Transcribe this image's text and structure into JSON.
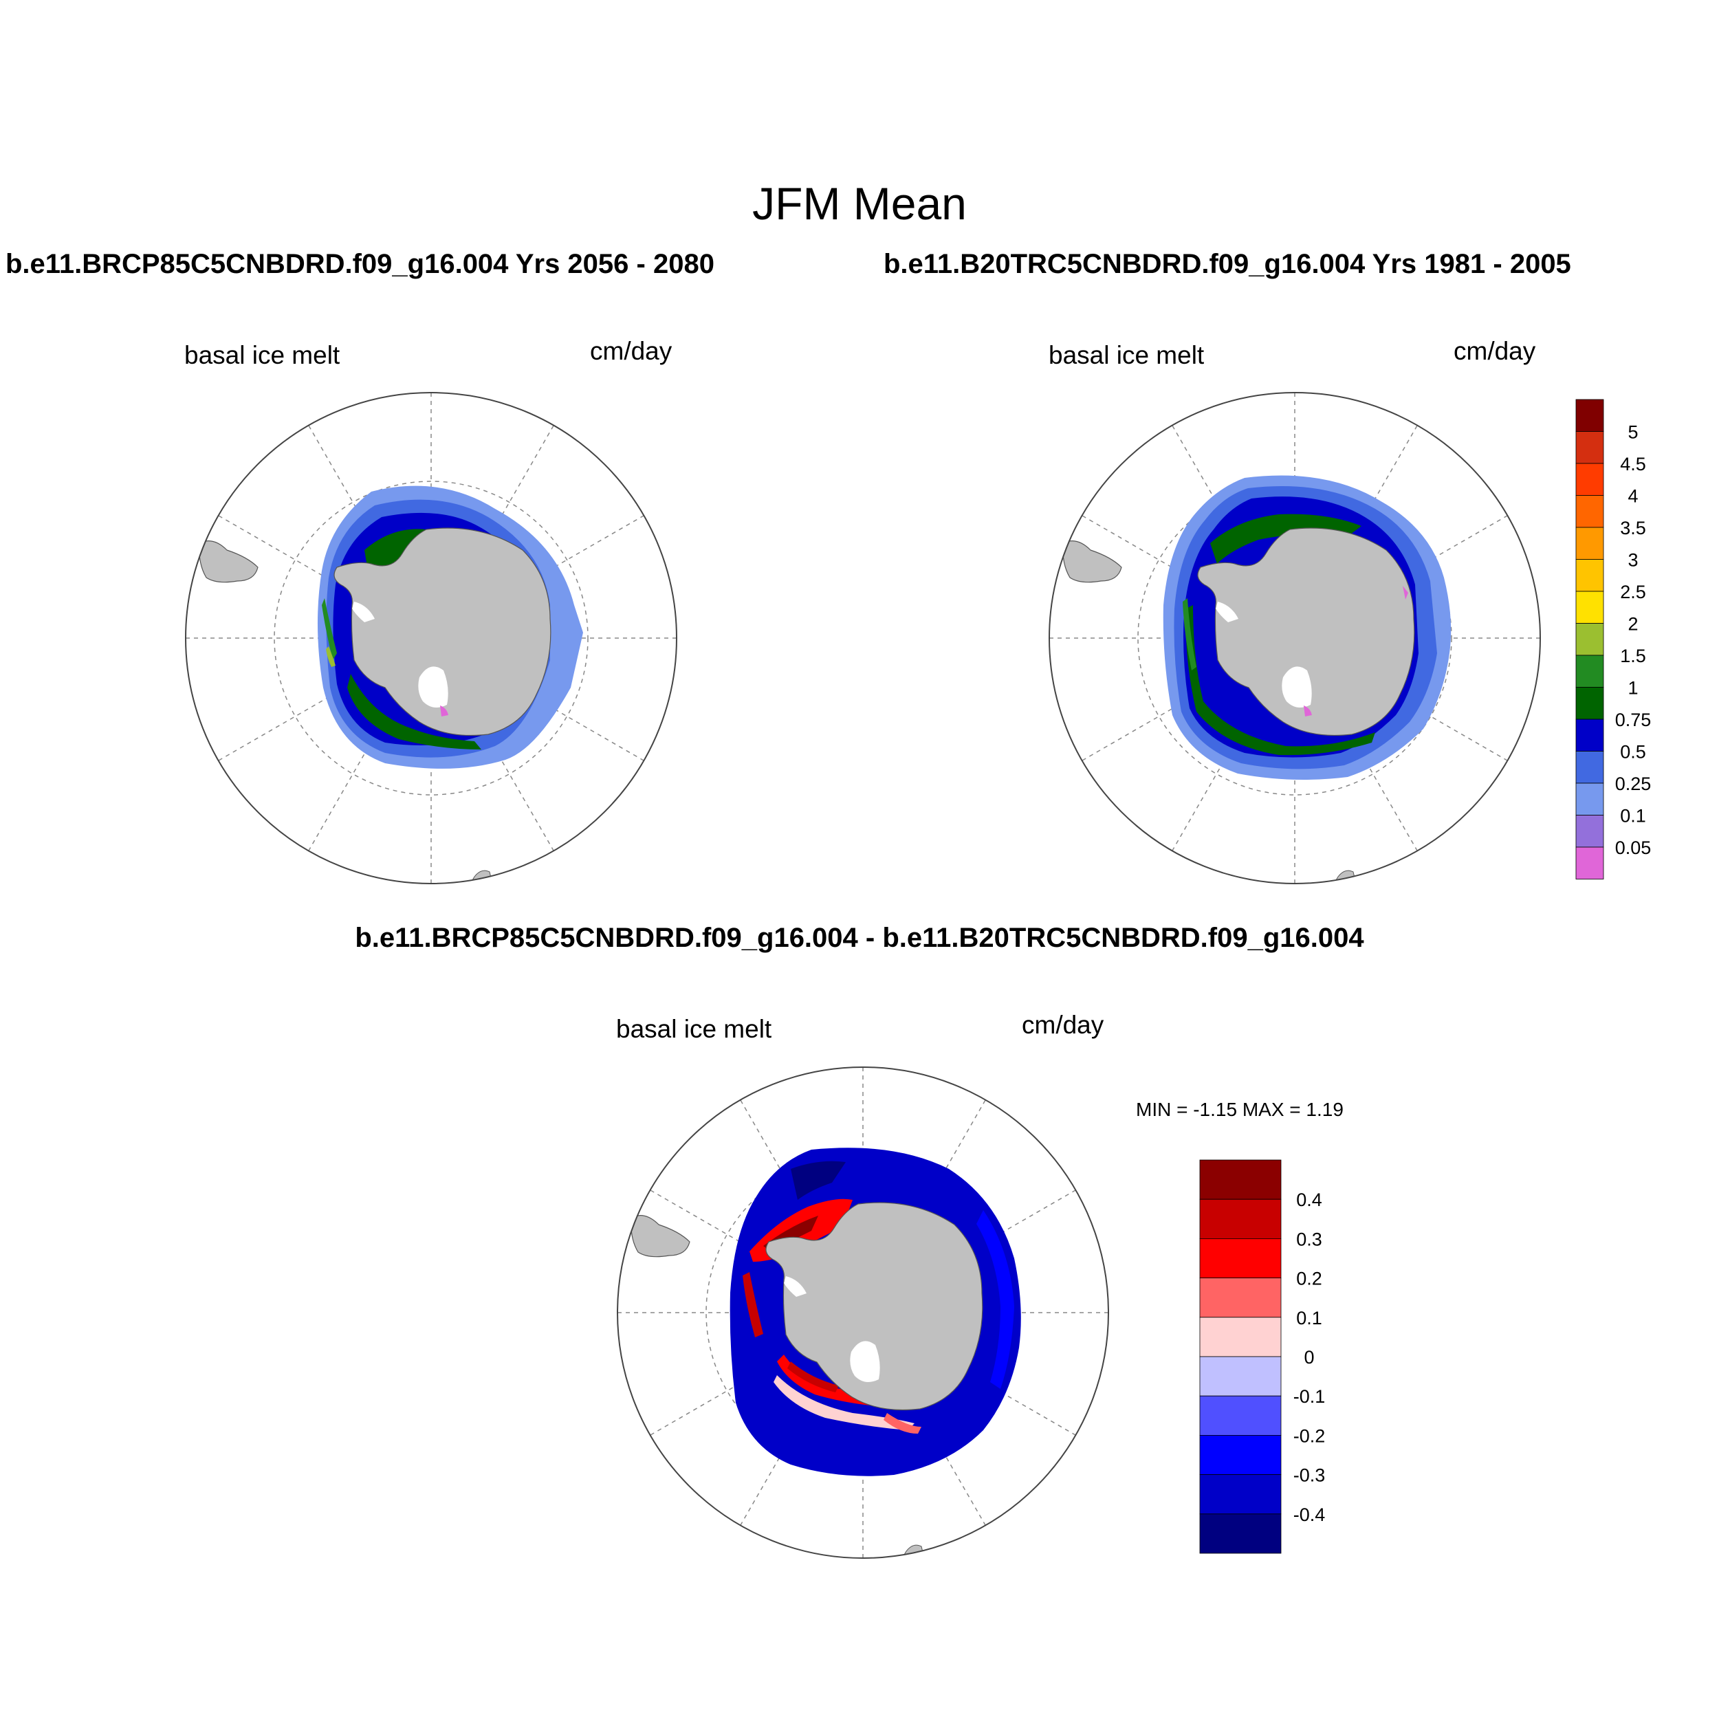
{
  "figure": {
    "title": "JFM Mean",
    "case_a": "b.e11.BRCP85C5CNBDRD.f09_g16.004  Yrs 2056 - 2080",
    "case_b": "b.e11.B20TRC5CNBDRD.f09_g16.004  Yrs 1981 - 2005",
    "diff_title": "b.e11.BRCP85C5CNBDRD.f09_g16.004 - b.e11.B20TRC5CNBDRD.f09_g16.004"
  },
  "panels": [
    {
      "id": "a",
      "left_label": "basal ice melt",
      "right_label": "cm/day"
    },
    {
      "id": "b",
      "left_label": "basal ice melt",
      "right_label": "cm/day"
    },
    {
      "id": "diff",
      "left_label": "basal ice melt",
      "right_label": "cm/day",
      "min_max": "MIN =  -1.15 MAX =   1.19"
    }
  ],
  "colorbar_main": {
    "labels": [
      "5",
      "4.5",
      "4",
      "3.5",
      "3",
      "2.5",
      "2",
      "1.5",
      "1",
      "0.75",
      "0.5",
      "0.25",
      "0.1",
      "0.05"
    ],
    "colors_top_to_bottom": [
      "#800000",
      "#d42f10",
      "#ff3c00",
      "#ff6600",
      "#ff9900",
      "#ffc400",
      "#ffe100",
      "#9bbf30",
      "#228b22",
      "#006400",
      "#0000c8",
      "#4169e1",
      "#7799ee",
      "#9370db",
      "#e066d8"
    ]
  },
  "colorbar_diff": {
    "labels": [
      "0.4",
      "0.3",
      "0.2",
      "0.1",
      "0",
      "-0.1",
      "-0.2",
      "-0.3",
      "-0.4"
    ],
    "colors_top_to_bottom": [
      "#8b0000",
      "#c80000",
      "#ff0000",
      "#ff6464",
      "#ffd2d2",
      "#c0c0ff",
      "#5050ff",
      "#0000ff",
      "#0000c8",
      "#000080"
    ]
  },
  "map_colors": {
    "land": "#c0c0c0",
    "ice_shelf": "#ffffff",
    "grid": "#888888"
  }
}
